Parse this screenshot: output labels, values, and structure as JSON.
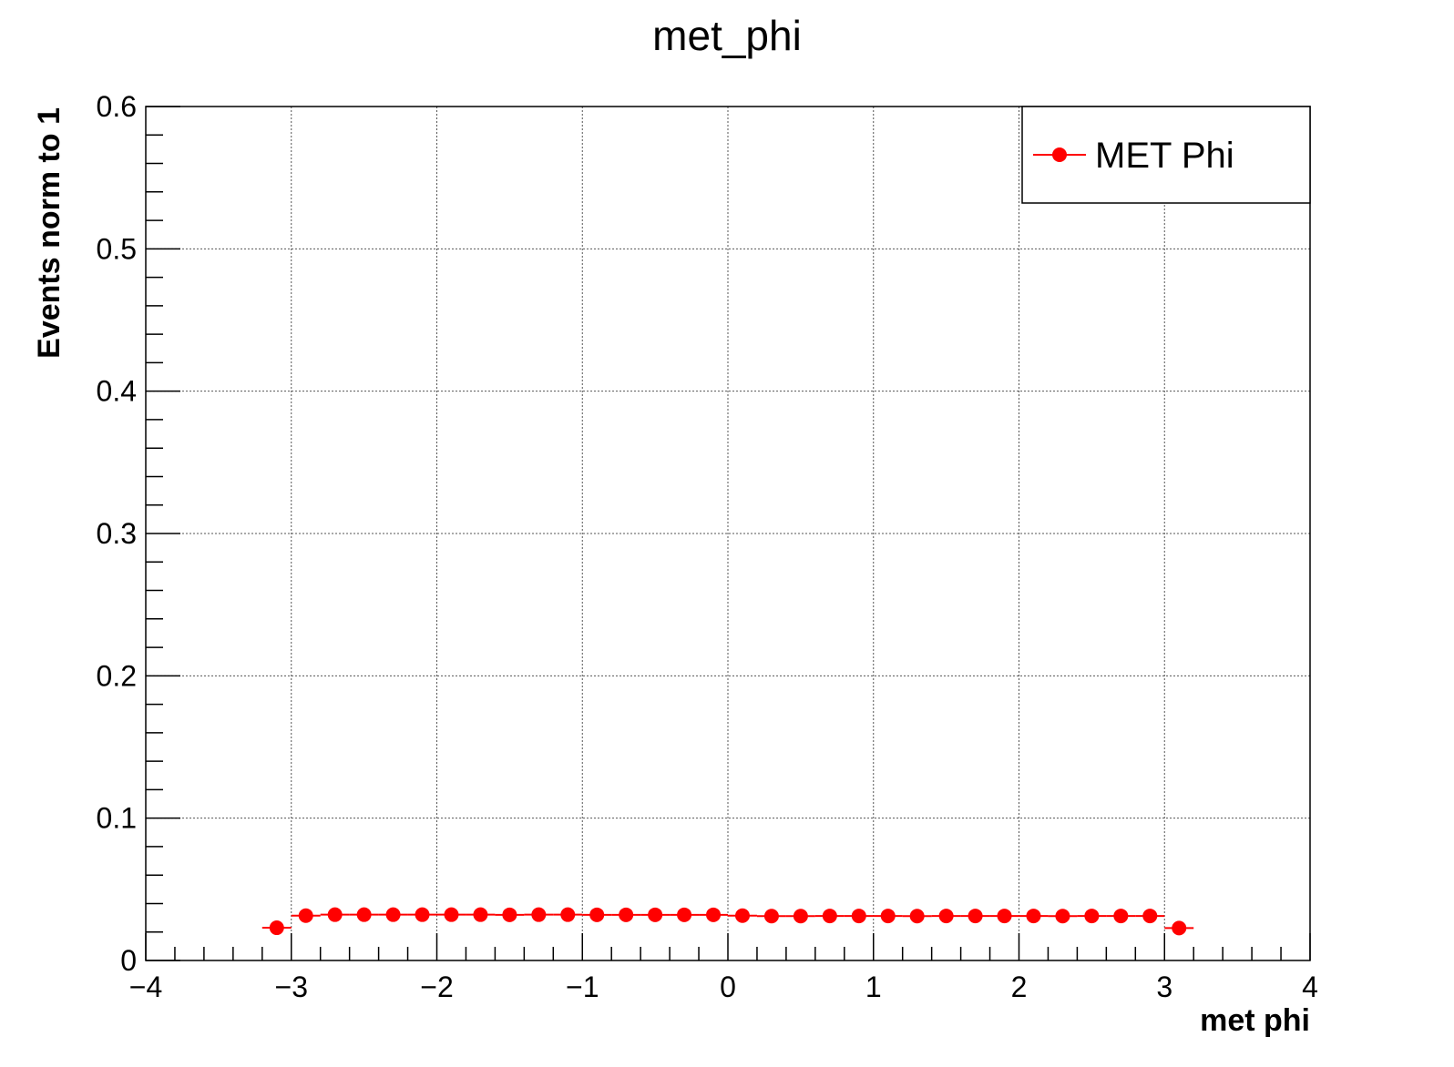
{
  "chart_data": {
    "type": "scatter",
    "title": "met_phi",
    "xlabel": "met phi",
    "ylabel": "Events norm to 1",
    "xlim": [
      -4,
      4
    ],
    "ylim": [
      0,
      0.6
    ],
    "x_ticks": [
      -4,
      -3,
      -2,
      -1,
      0,
      1,
      2,
      3,
      4
    ],
    "x_tick_labels": [
      "−4",
      "−3",
      "−2",
      "−1",
      "0",
      "1",
      "2",
      "3",
      "4"
    ],
    "y_ticks": [
      0,
      0.1,
      0.2,
      0.3,
      0.4,
      0.5,
      0.6
    ],
    "y_tick_labels": [
      "0",
      "0.1",
      "0.2",
      "0.3",
      "0.4",
      "0.5",
      "0.6"
    ],
    "grid": true,
    "legend_position": "top-right",
    "bin_width": 0.2,
    "series": [
      {
        "name": "MET Phi",
        "color": "#ff0000",
        "x": [
          -3.1,
          -2.9,
          -2.7,
          -2.5,
          -2.3,
          -2.1,
          -1.9,
          -1.7,
          -1.5,
          -1.3,
          -1.1,
          -0.9,
          -0.7,
          -0.5,
          -0.3,
          -0.1,
          0.1,
          0.3,
          0.5,
          0.7,
          0.9,
          1.1,
          1.3,
          1.5,
          1.7,
          1.9,
          2.1,
          2.3,
          2.5,
          2.7,
          2.9,
          3.1
        ],
        "y": [
          0.023,
          0.0315,
          0.0322,
          0.0322,
          0.0322,
          0.0322,
          0.0322,
          0.0322,
          0.0321,
          0.0322,
          0.0322,
          0.0321,
          0.0321,
          0.0321,
          0.0321,
          0.0321,
          0.0315,
          0.0312,
          0.0312,
          0.0313,
          0.0313,
          0.0313,
          0.0312,
          0.0313,
          0.0313,
          0.0313,
          0.0313,
          0.0312,
          0.0313,
          0.0313,
          0.0313,
          0.0228
        ]
      }
    ]
  }
}
